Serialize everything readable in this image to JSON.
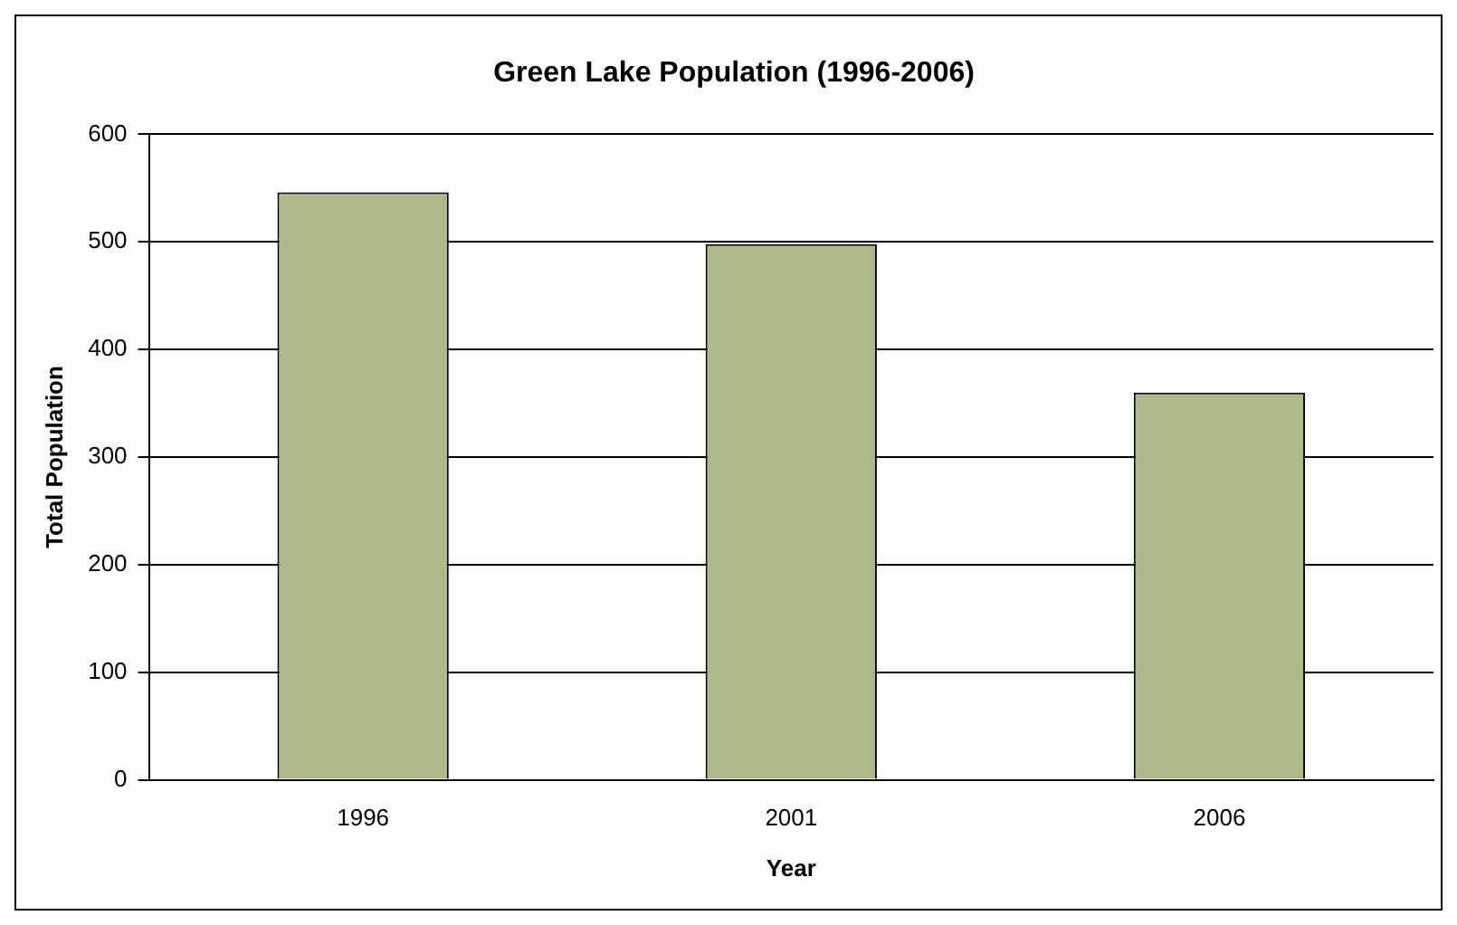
{
  "chart_data": {
    "type": "bar",
    "title": "Green Lake Population (1996-2006)",
    "xlabel": "Year",
    "ylabel": "Total Population",
    "categories": [
      "1996",
      "2001",
      "2006"
    ],
    "values": [
      546,
      498,
      360
    ],
    "color": "#adb986",
    "ylim": [
      0,
      600
    ],
    "yticks": [
      0,
      100,
      200,
      300,
      400,
      500,
      600
    ],
    "grid": "y",
    "legend": false
  }
}
